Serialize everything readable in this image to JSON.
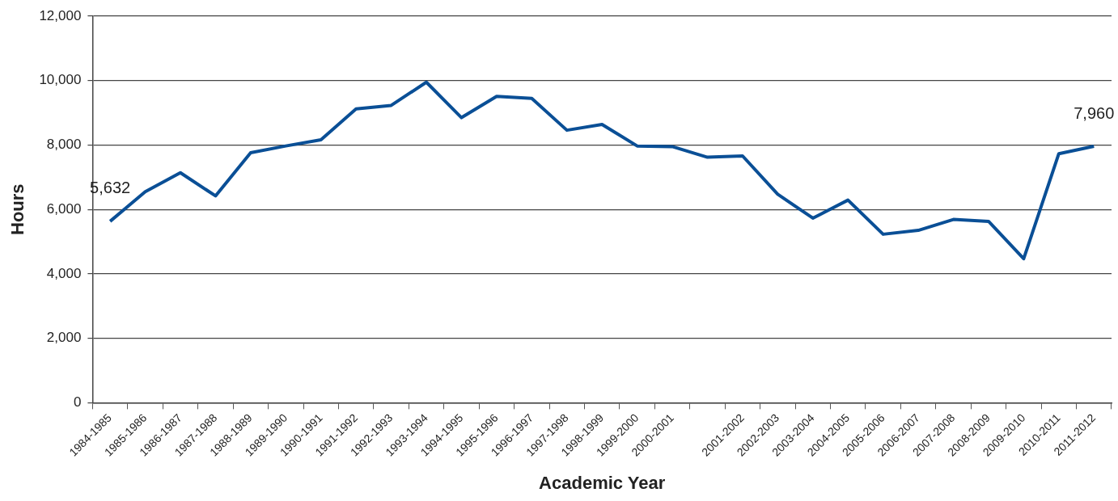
{
  "chart_data": {
    "type": "line",
    "xlabel": "Academic Year",
    "ylabel": "Hours",
    "categories": [
      "1984-1985",
      "1985-1986",
      "1986-1987",
      "1987-1988",
      "1988-1989",
      "1989-1990",
      "1990-1991",
      "1991-1992",
      "1992-1993",
      "1993-1994",
      "1994-1995",
      "1995-1996",
      "1996-1997",
      "1997-1998",
      "1998-1999",
      "1999-2000",
      "2000-2001",
      null,
      "2001-2002",
      "2002-2003",
      "2003-2004",
      "2004-2005",
      "2005-2006",
      "2006-2007",
      "2007-2008",
      "2008-2009",
      "2009-2010",
      "2010-2011",
      "2011-2012"
    ],
    "series": [
      {
        "color": "#0a4f96",
        "values": [
          5632,
          6550,
          7140,
          6420,
          7760,
          7970,
          8160,
          9120,
          9230,
          9950,
          8850,
          9510,
          9450,
          8460,
          8640,
          7970,
          7950,
          7620,
          7660,
          6470,
          5730,
          6290,
          5230,
          5350,
          5690,
          5630,
          4470,
          7730,
          7960
        ]
      }
    ],
    "ylim": [
      0,
      12000
    ],
    "yticks": [
      {
        "value": 0,
        "label": "0"
      },
      {
        "value": 2000,
        "label": "2,000"
      },
      {
        "value": 4000,
        "label": "4,000"
      },
      {
        "value": 6000,
        "label": "6,000"
      },
      {
        "value": 8000,
        "label": "8,000"
      },
      {
        "value": 10000,
        "label": "10,000"
      },
      {
        "value": 12000,
        "label": "12,000"
      }
    ],
    "annotations": [
      {
        "text": "5,632",
        "x": "1984-1985",
        "y": 5632
      },
      {
        "text": "7,960",
        "x": "2011-2012",
        "y": 7960
      }
    ],
    "grid": "y",
    "legend": false,
    "marker": "none",
    "line_style": "solid"
  }
}
